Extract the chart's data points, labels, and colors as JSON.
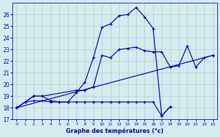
{
  "xlabel": "Graphe des températures (°c)",
  "xlim": [
    -0.5,
    23.5
  ],
  "ylim": [
    17,
    27
  ],
  "xticks": [
    0,
    1,
    2,
    3,
    4,
    5,
    6,
    7,
    8,
    9,
    10,
    11,
    12,
    13,
    14,
    15,
    16,
    17,
    18,
    19,
    20,
    21,
    22,
    23
  ],
  "yticks": [
    17,
    18,
    19,
    20,
    21,
    22,
    23,
    24,
    25,
    26
  ],
  "background_color": "#d4ecee",
  "grid_color": "#b0cccc",
  "line_color": "#0000bb",
  "series": [
    {
      "x": [
        0,
        1,
        2,
        3,
        4,
        5,
        6,
        7,
        8,
        9,
        10,
        11,
        12,
        13,
        14,
        15,
        16,
        17,
        18
      ],
      "y": [
        18.0,
        18.5,
        19.0,
        19.0,
        18.6,
        18.5,
        18.5,
        19.3,
        20.2,
        22.3,
        24.9,
        25.2,
        25.9,
        26.0,
        26.6,
        25.8,
        24.8,
        17.3,
        18.1
      ]
    },
    {
      "x": [
        0,
        2,
        3,
        7,
        8,
        9,
        10,
        11,
        12,
        13,
        14,
        15,
        16,
        17,
        18,
        19,
        20,
        21,
        22,
        23
      ],
      "y": [
        18.0,
        19.0,
        19.0,
        19.5,
        19.5,
        19.8,
        22.5,
        22.3,
        23.0,
        23.1,
        23.2,
        22.9,
        22.8,
        22.8,
        21.5,
        21.6,
        23.3,
        21.5,
        22.3,
        22.5
      ]
    },
    {
      "x": [
        0,
        23
      ],
      "y": [
        18.0,
        22.5
      ]
    },
    {
      "x": [
        0,
        1,
        2,
        3,
        4,
        5,
        6,
        7,
        8,
        9,
        10,
        11,
        12,
        13,
        14,
        15,
        16,
        17,
        18
      ],
      "y": [
        18.0,
        18.5,
        18.6,
        18.6,
        18.5,
        18.5,
        18.5,
        18.5,
        18.5,
        18.5,
        18.5,
        18.5,
        18.5,
        18.5,
        18.5,
        18.5,
        18.5,
        17.3,
        18.1
      ]
    }
  ]
}
